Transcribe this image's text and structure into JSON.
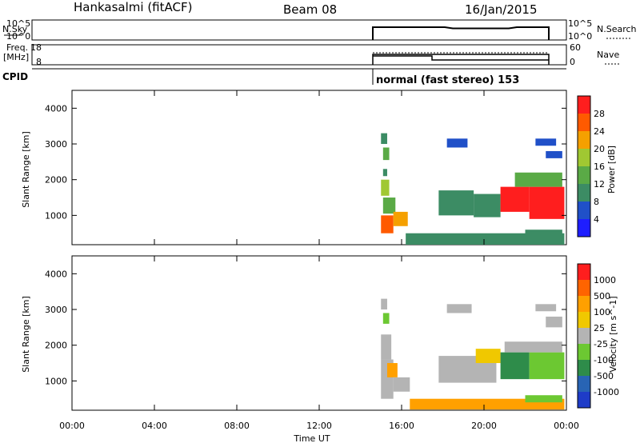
{
  "header": {
    "station": "Hankasalmi (fitACF)",
    "beam": "Beam 08",
    "date": "16/Jan/2015"
  },
  "noise_panel": {
    "left_label": "N.Sky",
    "right_label": "N.Search",
    "left_ticks": [
      "10^5",
      "10^0"
    ],
    "right_ticks": [
      "10^5",
      "10^0"
    ]
  },
  "freq_panel": {
    "left_label_1": "Freq.",
    "left_label_2": "[MHz]",
    "right_label": "Nave",
    "left_ticks": [
      "18",
      "8"
    ],
    "right_ticks": [
      "60",
      "0"
    ]
  },
  "cpid": {
    "label": "CPID",
    "mode_text": "normal (fast stereo) 153"
  },
  "colors": {
    "power": [
      "#1e1eff",
      "#2050c8",
      "#3c8c64",
      "#5aaa46",
      "#a0c832",
      "#f5a000",
      "#ff5a00",
      "#ff1e1e"
    ],
    "velocity": [
      "#1e3cc8",
      "#2864b4",
      "#2e8c4a",
      "#6cc832",
      "#b4b4b4",
      "#f0c800",
      "#ffa000",
      "#ff6400",
      "#ff1e1e"
    ]
  },
  "chart_data": [
    {
      "type": "heatmap",
      "name": "power",
      "ylabel": "Slant Range [km]",
      "colorbar_label": "Power [dB]",
      "colorbar_ticks": [
        "28",
        "24",
        "20",
        "16",
        "12",
        "8",
        "4"
      ],
      "xlim": [
        "00:00",
        "24:00"
      ],
      "ylim": [
        180,
        4500
      ],
      "yticks": [
        "1000",
        "2000",
        "3000",
        "4000"
      ],
      "cells": [
        {
          "t": [
            15.0,
            15.6
          ],
          "r": [
            500,
            1000
          ],
          "level": 6
        },
        {
          "t": [
            15.1,
            15.7
          ],
          "r": [
            1050,
            1500
          ],
          "level": 3
        },
        {
          "t": [
            15.0,
            15.4
          ],
          "r": [
            1550,
            2000
          ],
          "level": 4
        },
        {
          "t": [
            15.1,
            15.3
          ],
          "r": [
            2100,
            2300
          ],
          "level": 2
        },
        {
          "t": [
            15.1,
            15.4
          ],
          "r": [
            2550,
            2900
          ],
          "level": 3
        },
        {
          "t": [
            15.0,
            15.3
          ],
          "r": [
            3000,
            3300
          ],
          "level": 2
        },
        {
          "t": [
            15.6,
            16.3
          ],
          "r": [
            700,
            1100
          ],
          "level": 5
        },
        {
          "t": [
            17.8,
            19.5
          ],
          "r": [
            1000,
            1700
          ],
          "level": 2
        },
        {
          "t": [
            19.5,
            20.8
          ],
          "r": [
            950,
            1600
          ],
          "level": 2
        },
        {
          "t": [
            20.8,
            22.2
          ],
          "r": [
            1100,
            1800
          ],
          "level": 7
        },
        {
          "t": [
            22.2,
            23.9
          ],
          "r": [
            900,
            1800
          ],
          "level": 7
        },
        {
          "t": [
            21.5,
            23.8
          ],
          "r": [
            1800,
            2200
          ],
          "level": 3
        },
        {
          "t": [
            16.2,
            23.9
          ],
          "r": [
            180,
            500
          ],
          "level": 2
        },
        {
          "t": [
            22.0,
            23.8
          ],
          "r": [
            450,
            600
          ],
          "level": 2
        },
        {
          "t": [
            23.0,
            23.8
          ],
          "r": [
            2600,
            2800
          ],
          "level": 1
        },
        {
          "t": [
            18.2,
            19.2
          ],
          "r": [
            2900,
            3150
          ],
          "level": 1
        },
        {
          "t": [
            22.5,
            23.5
          ],
          "r": [
            2950,
            3150
          ],
          "level": 1
        }
      ]
    },
    {
      "type": "heatmap",
      "name": "velocity",
      "ylabel": "Slant Range [km]",
      "xlabel": "Time UT",
      "colorbar_label": "Velocity [m s^-1]",
      "colorbar_ticks": [
        "1000",
        "500",
        "100",
        "25",
        "-25",
        "-100",
        "-500",
        "-1000"
      ],
      "xlim": [
        "00:00",
        "24:00"
      ],
      "ylim": [
        180,
        4500
      ],
      "yticks": [
        "1000",
        "2000",
        "3000",
        "4000"
      ],
      "xticks": [
        "00:00",
        "04:00",
        "08:00",
        "12:00",
        "16:00",
        "20:00",
        "00:00"
      ],
      "cells": [
        {
          "t": [
            15.0,
            15.6
          ],
          "r": [
            500,
            1600
          ],
          "level": 4
        },
        {
          "t": [
            15.0,
            15.5
          ],
          "r": [
            1600,
            2300
          ],
          "level": 4
        },
        {
          "t": [
            15.1,
            15.4
          ],
          "r": [
            2600,
            2900
          ],
          "level": 3
        },
        {
          "t": [
            15.0,
            15.3
          ],
          "r": [
            3000,
            3300
          ],
          "level": 4
        },
        {
          "t": [
            15.3,
            15.8
          ],
          "r": [
            1100,
            1500
          ],
          "level": 6
        },
        {
          "t": [
            15.6,
            16.4
          ],
          "r": [
            700,
            1100
          ],
          "level": 4
        },
        {
          "t": [
            17.8,
            20.6
          ],
          "r": [
            950,
            1700
          ],
          "level": 4
        },
        {
          "t": [
            19.6,
            20.8
          ],
          "r": [
            1500,
            1900
          ],
          "level": 5
        },
        {
          "t": [
            20.8,
            22.2
          ],
          "r": [
            1050,
            1800
          ],
          "level": 2
        },
        {
          "t": [
            22.2,
            23.9
          ],
          "r": [
            1050,
            1800
          ],
          "level": 3
        },
        {
          "t": [
            21.0,
            23.8
          ],
          "r": [
            1800,
            2100
          ],
          "level": 4
        },
        {
          "t": [
            16.4,
            23.9
          ],
          "r": [
            200,
            500
          ],
          "level": 6
        },
        {
          "t": [
            22.0,
            23.8
          ],
          "r": [
            400,
            600
          ],
          "level": 3
        },
        {
          "t": [
            23.0,
            23.8
          ],
          "r": [
            2500,
            2800
          ],
          "level": 4
        },
        {
          "t": [
            18.2,
            19.4
          ],
          "r": [
            2900,
            3150
          ],
          "level": 4
        },
        {
          "t": [
            22.5,
            23.5
          ],
          "r": [
            2950,
            3150
          ],
          "level": 4
        }
      ]
    }
  ]
}
